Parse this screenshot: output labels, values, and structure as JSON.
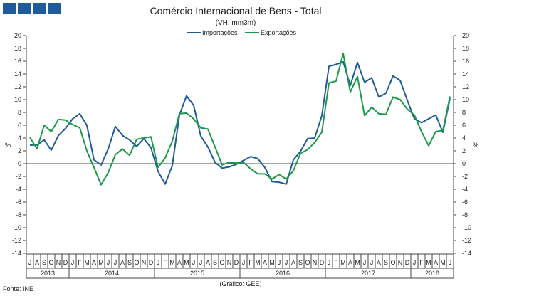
{
  "branding": {
    "squares": 4,
    "color": "#1f5a99"
  },
  "footer": {
    "source": "Fonte: INE",
    "credit": "(Gráfico: GEE)"
  },
  "chart_data": {
    "type": "line",
    "title": "Comércio Internacional de Bens - Total",
    "subtitle": "(VH, mm3m)",
    "ylabel_left": "%",
    "ylabel_right": "%",
    "ylim": [
      -14,
      20
    ],
    "yticks": [
      -14,
      -12,
      -10,
      -8,
      -6,
      -4,
      -2,
      0,
      2,
      4,
      6,
      8,
      10,
      12,
      14,
      16,
      18,
      20
    ],
    "legend_position": "top-center",
    "grid": false,
    "months": [
      "J",
      "A",
      "S",
      "O",
      "N",
      "D",
      "J",
      "F",
      "M",
      "A",
      "M",
      "J",
      "J",
      "A",
      "S",
      "O",
      "N",
      "D",
      "J",
      "F",
      "M",
      "A",
      "M",
      "J",
      "J",
      "A",
      "S",
      "O",
      "N",
      "D",
      "J",
      "F",
      "M",
      "A",
      "M",
      "J",
      "J",
      "A",
      "S",
      "O",
      "N",
      "D",
      "J",
      "F",
      "M",
      "A",
      "M",
      "J",
      "J",
      "A",
      "S",
      "O",
      "N",
      "D",
      "J",
      "F",
      "M",
      "A",
      "M",
      "J"
    ],
    "years": [
      {
        "label": "2013",
        "start": 0,
        "count": 6
      },
      {
        "label": "2014",
        "start": 6,
        "count": 12
      },
      {
        "label": "2015",
        "start": 18,
        "count": 12
      },
      {
        "label": "2016",
        "start": 30,
        "count": 12
      },
      {
        "label": "2017",
        "start": 42,
        "count": 12
      },
      {
        "label": "2018",
        "start": 54,
        "count": 6
      }
    ],
    "series": [
      {
        "name": "Importações",
        "color": "#1f5a99",
        "values": [
          2.9,
          2.9,
          3.7,
          2.1,
          4.4,
          5.5,
          7.0,
          7.8,
          6.0,
          0.6,
          -0.2,
          2.3,
          5.8,
          4.4,
          3.7,
          2.7,
          3.9,
          2.5,
          -1.2,
          -3.2,
          -0.3,
          7.6,
          10.6,
          9.1,
          4.3,
          2.6,
          0.2,
          -0.7,
          -0.5,
          -0.1,
          0.5,
          1.1,
          0.8,
          -0.6,
          -2.8,
          -2.9,
          -3.2,
          0.6,
          1.9,
          3.9,
          4.0,
          7.5,
          15.2,
          15.5,
          15.9,
          12.2,
          15.8,
          12.7,
          13.4,
          10.4,
          11.0,
          13.7,
          13.0,
          9.9,
          7.0,
          6.4,
          7.0,
          7.6,
          4.9,
          10.2
        ]
      },
      {
        "name": "Exportações",
        "color": "#1a9a49",
        "values": [
          4.1,
          2.3,
          6.0,
          5.0,
          6.9,
          6.8,
          6.1,
          5.6,
          2.0,
          -0.6,
          -3.3,
          -1.4,
          1.4,
          2.3,
          1.3,
          3.8,
          4.0,
          4.2,
          -0.6,
          0.9,
          3.5,
          7.8,
          7.9,
          7.0,
          5.6,
          5.4,
          2.6,
          -0.2,
          0.2,
          0.1,
          0.2,
          -0.8,
          -1.6,
          -1.6,
          -2.4,
          -1.7,
          -2.4,
          -1.1,
          1.6,
          2.2,
          3.3,
          4.9,
          12.6,
          12.9,
          17.2,
          11.2,
          13.6,
          7.5,
          8.8,
          7.8,
          7.7,
          10.4,
          10.0,
          8.5,
          7.6,
          5.0,
          2.8,
          5.0,
          5.2,
          10.5
        ]
      }
    ]
  }
}
